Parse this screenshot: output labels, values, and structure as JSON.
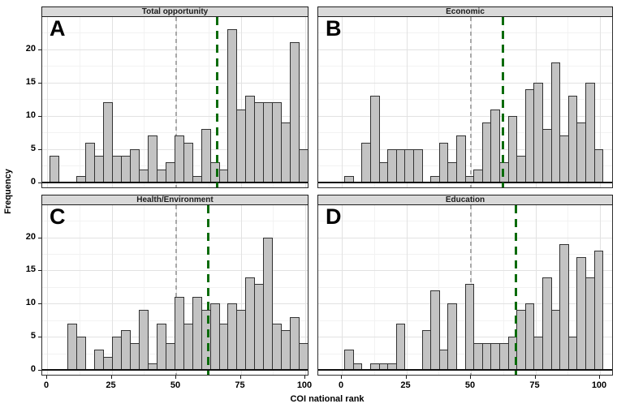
{
  "figure": {
    "xlabel": "COI national rank",
    "ylabel": "Frequency"
  },
  "axes": {
    "x_ticks": [
      0,
      25,
      50,
      75,
      100
    ],
    "y_ticks": [
      0,
      5,
      10,
      15,
      20
    ],
    "x_minor": [
      12.5,
      37.5,
      62.5,
      87.5
    ],
    "y_minor": [
      2.5,
      7.5,
      12.5,
      17.5,
      22.5
    ],
    "y_max": 23,
    "x_range": [
      0,
      100
    ]
  },
  "reference_lines": {
    "gray_dashed_x": 50
  },
  "chart_data": [
    {
      "type": "histogram",
      "letter": "A",
      "title": "Total opportunity",
      "xlabel": "COI national rank",
      "ylabel": "Frequency",
      "bin_start": 1,
      "bin_width": 3.45,
      "frequencies": [
        4,
        0,
        0,
        1,
        6,
        4,
        12,
        4,
        4,
        5,
        2,
        7,
        2,
        3,
        7,
        6,
        1,
        8,
        3,
        2,
        23,
        11,
        13,
        12,
        12,
        12,
        9,
        21,
        5
      ],
      "vline_gray_x": 50,
      "vline_green_x": 65.8
    },
    {
      "type": "histogram",
      "letter": "B",
      "title": "Economic",
      "xlabel": "COI national rank",
      "ylabel": "Frequency",
      "bin_start": 1,
      "bin_width": 3.33,
      "frequencies": [
        1,
        0,
        6,
        13,
        3,
        5,
        5,
        5,
        5,
        0,
        1,
        6,
        3,
        7,
        1,
        2,
        9,
        11,
        3,
        10,
        4,
        14,
        15,
        8,
        18,
        7,
        13,
        9,
        15,
        5
      ],
      "vline_gray_x": 50,
      "vline_green_x": 62.5
    },
    {
      "type": "histogram",
      "letter": "C",
      "title": "Health/Environment",
      "xlabel": "COI national rank",
      "ylabel": "Frequency",
      "bin_start": 1,
      "bin_width": 3.45,
      "frequencies": [
        0,
        0,
        7,
        5,
        0,
        3,
        2,
        5,
        6,
        4,
        9,
        1,
        7,
        4,
        11,
        7,
        11,
        9,
        10,
        7,
        10,
        9,
        14,
        13,
        20,
        7,
        6,
        8,
        4
      ],
      "vline_gray_x": 50,
      "vline_green_x": 62.4
    },
    {
      "type": "histogram",
      "letter": "D",
      "title": "Education",
      "xlabel": "COI national rank",
      "ylabel": "Frequency",
      "bin_start": 1,
      "bin_width": 3.33,
      "frequencies": [
        3,
        1,
        0,
        1,
        1,
        1,
        7,
        0,
        0,
        6,
        12,
        3,
        10,
        0,
        13,
        4,
        4,
        4,
        4,
        5,
        9,
        10,
        5,
        14,
        9,
        19,
        5,
        17,
        14,
        18
      ],
      "vline_gray_x": 50,
      "vline_green_x": 67.4
    }
  ],
  "colors": {
    "bar_fill": "#c3c3c3",
    "bar_stroke": "#333333",
    "grid_major": "#e2e2e2",
    "grid_minor": "#f2f2f2",
    "strip_bg": "#d9d9d9",
    "panel_border": "#2f2f2f",
    "ref_gray": "#a9a9a9",
    "ref_green": "#0a6b0a",
    "baseline": "#111111"
  }
}
